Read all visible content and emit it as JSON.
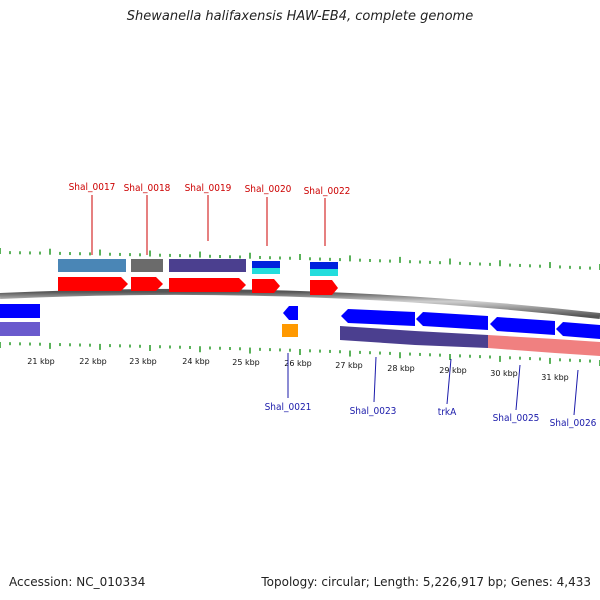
{
  "title": "Shewanella halifaxensis HAW-EB4, complete genome",
  "footer": {
    "accession": "Accession: NC_010334",
    "summary": "Topology: circular; Length: 5,226,917 bp; Genes: 4,433"
  },
  "colors": {
    "forward_cds": "#ff0000",
    "reverse_cds": "#0000ff",
    "backbone": "#888888",
    "ticks": "#229922",
    "label_forward": "#cc0000",
    "label_reverse": "#1a1aaa"
  },
  "kbp_ticks": [
    "21 kbp",
    "22 kbp",
    "23 kbp",
    "24 kbp",
    "25 kbp",
    "26 kbp",
    "27 kbp",
    "28 kbp",
    "29 kbp",
    "30 kbp",
    "31 kbp"
  ],
  "forward_labels": [
    "Shal_0017",
    "Shal_0018",
    "Shal_0019",
    "Shal_0020",
    "Shal_0022"
  ],
  "reverse_labels": [
    "Shal_0021",
    "Shal_0023",
    "trkA",
    "Shal_0025",
    "Shal_0026"
  ]
}
